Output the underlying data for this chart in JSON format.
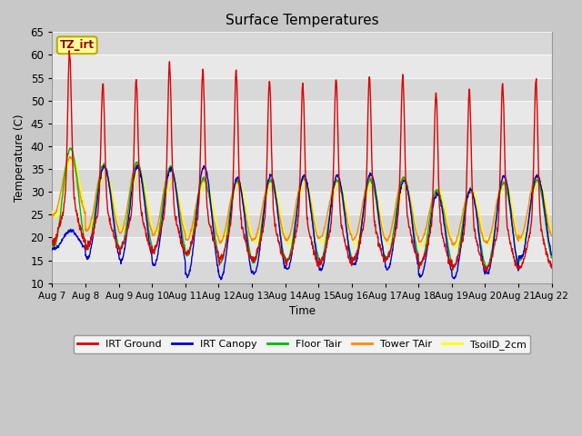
{
  "title": "Surface Temperatures",
  "xlabel": "Time",
  "ylabel": "Temperature (C)",
  "ylim": [
    10,
    65
  ],
  "num_days": 15,
  "samples_per_day": 96,
  "series_colors": {
    "IRT Ground": "#dd0000",
    "IRT Canopy": "#0000cc",
    "Floor Tair": "#00bb00",
    "Tower TAir": "#ff8800",
    "TsoilD_2cm": "#ffff00"
  },
  "annotation_text": "TZ_irt",
  "annotation_bg": "#ffff99",
  "annotation_border": "#bbaa00",
  "tick_labels": [
    "Aug 7",
    "Aug 8",
    "Aug 9",
    "Aug 10",
    "Aug 11",
    "Aug 12",
    "Aug 13",
    "Aug 14",
    "Aug 15",
    "Aug 16",
    "Aug 17",
    "Aug 18",
    "Aug 19",
    "Aug 20",
    "Aug 21",
    "Aug 22"
  ],
  "yticks": [
    10,
    15,
    20,
    25,
    30,
    35,
    40,
    45,
    50,
    55,
    60,
    65
  ],
  "fig_facecolor": "#c8c8c8",
  "ax_facecolor": "#e0e0e0",
  "grid_color": "#f8f8f8",
  "irt_ground_peaks": [
    60.5,
    53.5,
    54.5,
    58.0,
    56.5,
    56.5,
    54.5,
    53.5,
    55.0,
    55.5,
    55.5,
    51.5,
    52.0,
    53.5,
    54.5
  ],
  "irt_ground_mins": [
    19.0,
    18.0,
    17.5,
    17.0,
    16.5,
    15.0,
    15.0,
    14.5,
    14.5,
    15.0,
    15.5,
    14.0,
    13.5,
    13.0,
    13.5
  ],
  "canopy_peaks": [
    21.5,
    35.5,
    35.5,
    35.0,
    35.5,
    33.0,
    33.5,
    33.5,
    33.5,
    34.0,
    32.5,
    29.5,
    30.5,
    33.5,
    33.5
  ],
  "canopy_mins": [
    17.5,
    15.5,
    15.0,
    14.0,
    11.5,
    11.0,
    12.0,
    13.0,
    13.0,
    14.0,
    13.0,
    11.5,
    11.0,
    12.0,
    15.5
  ],
  "floor_peaks": [
    39.5,
    36.0,
    36.5,
    35.5,
    33.0,
    32.5,
    32.5,
    33.0,
    32.5,
    32.5,
    33.0,
    30.5,
    30.5,
    32.0,
    32.5
  ],
  "floor_mins": [
    18.0,
    17.5,
    17.5,
    17.0,
    16.0,
    14.5,
    14.5,
    15.0,
    15.0,
    15.0,
    15.5,
    14.0,
    13.5,
    13.5,
    15.0
  ],
  "tower_peaks": [
    37.5,
    35.5,
    36.0,
    35.0,
    32.5,
    32.0,
    32.5,
    33.0,
    32.5,
    33.0,
    33.0,
    30.0,
    30.0,
    32.0,
    33.5
  ],
  "tower_mins": [
    25.0,
    21.5,
    21.0,
    20.5,
    19.5,
    19.0,
    19.5,
    19.5,
    20.0,
    19.5,
    19.5,
    19.0,
    18.5,
    19.0,
    20.0
  ],
  "tsoil_peaks": [
    37.5,
    34.0,
    34.5,
    32.5,
    32.0,
    32.0,
    32.0,
    32.0,
    32.0,
    32.0,
    31.5,
    30.5,
    30.5,
    32.0,
    32.5
  ],
  "tsoil_mins": [
    24.5,
    22.0,
    21.5,
    21.0,
    20.5,
    19.5,
    19.0,
    18.5,
    19.0,
    18.5,
    18.5,
    18.0,
    18.0,
    18.5,
    19.5
  ]
}
